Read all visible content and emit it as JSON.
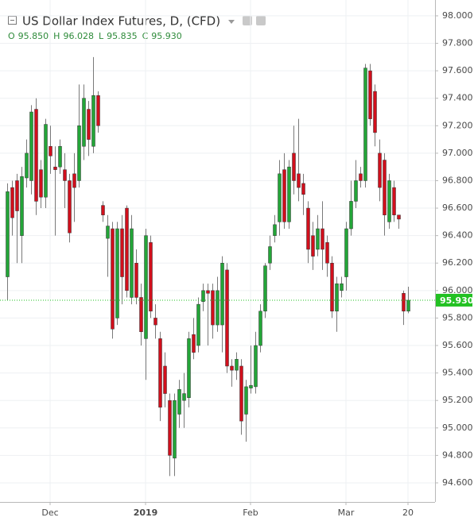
{
  "chart_data": {
    "type": "candlestick",
    "title": "US Dollar Index Futures, D, (CFD)",
    "ohlc_legend": [
      {
        "label": "O",
        "value": "95.850"
      },
      {
        "label": "H",
        "value": "96.028"
      },
      {
        "label": "L",
        "value": "95.835"
      },
      {
        "label": "C",
        "value": "95.930"
      }
    ],
    "categories": [
      null,
      null,
      null,
      null,
      null,
      null,
      null,
      null,
      null,
      "Dec",
      null,
      null,
      null,
      null,
      null,
      null,
      null,
      null,
      null,
      null,
      null,
      null,
      null,
      null,
      null,
      null,
      null,
      null,
      null,
      "2019",
      null,
      null,
      null,
      null,
      null,
      null,
      null,
      null,
      null,
      null,
      null,
      null,
      null,
      null,
      null,
      null,
      null,
      null,
      null,
      null,
      null,
      "Feb",
      null,
      null,
      null,
      null,
      null,
      null,
      null,
      null,
      null,
      null,
      null,
      null,
      null,
      null,
      null,
      null,
      null,
      null,
      null,
      "Mar",
      null,
      null,
      null,
      null,
      null,
      null,
      null,
      null,
      null,
      null,
      null,
      null,
      "20"
    ],
    "open": [
      96.1,
      96.75,
      96.8,
      96.4,
      96.82,
      96.8,
      97.32,
      96.88,
      96.68,
      97.05,
      96.9,
      96.9,
      96.88,
      96.8,
      96.85,
      96.8,
      97.05,
      97.32,
      97.05,
      97.42,
      96.62,
      96.38,
      96.45,
      95.8,
      96.45,
      96.6,
      95.95,
      96.2,
      95.95,
      95.65,
      96.35,
      95.8,
      95.65,
      95.45,
      95.2,
      94.78,
      95.1,
      95.2,
      95.22,
      95.68,
      95.6,
      95.92,
      96.0,
      96.0,
      95.75,
      95.75,
      96.15,
      95.45,
      95.42,
      95.45,
      95.1,
      95.29,
      95.3,
      95.6,
      95.85,
      96.2,
      96.4,
      96.5,
      96.88,
      96.5,
      97.0,
      96.85,
      96.78,
      96.6,
      96.4,
      96.3,
      96.45,
      96.35,
      96.2,
      95.85,
      96.0,
      96.1,
      96.45,
      96.65,
      96.85,
      96.8,
      97.6,
      97.45,
      97.0,
      96.95,
      96.5,
      96.75,
      96.55,
      95.98,
      95.85
    ],
    "high": [
      96.78,
      96.8,
      96.85,
      96.9,
      97.1,
      97.35,
      97.4,
      96.95,
      97.25,
      97.2,
      97.05,
      97.1,
      97.0,
      96.85,
      97.0,
      97.5,
      97.5,
      97.38,
      97.7,
      97.45,
      96.65,
      96.55,
      96.5,
      96.5,
      96.55,
      96.62,
      96.55,
      96.3,
      96.05,
      96.45,
      96.4,
      95.9,
      95.7,
      95.55,
      95.25,
      95.25,
      95.35,
      95.4,
      95.7,
      95.8,
      95.95,
      96.05,
      96.05,
      96.05,
      96.1,
      96.25,
      96.2,
      95.5,
      95.55,
      95.5,
      95.35,
      95.6,
      95.7,
      95.9,
      96.2,
      96.4,
      96.55,
      96.95,
      97.0,
      96.95,
      97.2,
      97.25,
      96.85,
      96.65,
      96.5,
      96.55,
      96.65,
      96.4,
      96.25,
      96.1,
      96.1,
      96.5,
      96.8,
      96.95,
      96.9,
      97.65,
      97.65,
      97.5,
      97.1,
      97.0,
      96.85,
      96.8,
      96.55,
      96.0,
      96.028
    ],
    "low": [
      95.93,
      96.4,
      96.2,
      96.2,
      96.75,
      96.7,
      96.55,
      96.6,
      96.6,
      96.85,
      96.4,
      96.85,
      96.6,
      96.35,
      96.5,
      96.75,
      96.95,
      96.98,
      97.0,
      97.15,
      96.5,
      96.1,
      95.65,
      95.75,
      95.9,
      95.95,
      95.9,
      95.9,
      95.6,
      95.35,
      95.8,
      95.65,
      95.05,
      95.15,
      94.65,
      94.65,
      95.0,
      95.0,
      95.15,
      95.5,
      95.55,
      95.85,
      95.6,
      95.65,
      95.7,
      95.55,
      95.4,
      95.3,
      95.35,
      94.95,
      94.9,
      95.25,
      95.25,
      95.55,
      95.8,
      96.15,
      96.35,
      96.4,
      96.45,
      96.45,
      96.7,
      96.65,
      96.55,
      96.2,
      96.15,
      96.25,
      96.15,
      96.1,
      95.8,
      95.7,
      95.95,
      96.0,
      96.4,
      96.6,
      96.75,
      96.75,
      97.2,
      97.05,
      96.65,
      96.4,
      96.45,
      96.5,
      96.45,
      95.75,
      95.835
    ],
    "close": [
      96.72,
      96.53,
      96.58,
      96.83,
      97.0,
      97.3,
      96.65,
      96.68,
      97.21,
      96.98,
      96.88,
      97.05,
      96.8,
      96.42,
      96.75,
      97.2,
      97.4,
      97.1,
      97.42,
      97.2,
      96.55,
      96.47,
      95.72,
      96.45,
      96.1,
      96.0,
      96.45,
      95.95,
      95.7,
      96.4,
      95.85,
      95.75,
      95.15,
      95.25,
      94.8,
      95.2,
      95.28,
      95.25,
      95.65,
      95.55,
      95.9,
      96.0,
      95.98,
      95.75,
      96.0,
      96.2,
      95.45,
      95.42,
      95.5,
      95.05,
      95.3,
      95.31,
      95.6,
      95.85,
      96.18,
      96.32,
      96.48,
      96.85,
      96.5,
      96.9,
      96.8,
      96.75,
      96.7,
      96.3,
      96.25,
      96.45,
      96.3,
      96.2,
      95.85,
      96.05,
      96.05,
      96.45,
      96.65,
      96.8,
      96.8,
      97.62,
      97.25,
      97.15,
      96.75,
      96.55,
      96.8,
      96.55,
      96.52,
      95.85,
      95.93
    ],
    "up_color": "#23a538",
    "down_color": "#d10f1c",
    "last_price": {
      "value": 95.93,
      "label": "95.930"
    },
    "last_price_color": "#22c122",
    "ylim": [
      94.461,
      98.069
    ],
    "yticks": [
      {
        "value": 94.6,
        "label": "94.600"
      },
      {
        "value": 94.8,
        "label": "94.800"
      },
      {
        "value": 95,
        "label": "95.000"
      },
      {
        "value": 95.2,
        "label": "95.200"
      },
      {
        "value": 95.4,
        "label": "95.400"
      },
      {
        "value": 95.6,
        "label": "95.600"
      },
      {
        "value": 95.8,
        "label": "95.800"
      },
      {
        "value": 96,
        "label": "96.000"
      },
      {
        "value": 96.2,
        "label": "96.200"
      },
      {
        "value": 96.4,
        "label": "96.400"
      },
      {
        "value": 96.6,
        "label": "96.600"
      },
      {
        "value": 96.8,
        "label": "96.800"
      },
      {
        "value": 97,
        "label": "97.000"
      },
      {
        "value": 97.2,
        "label": "97.200"
      },
      {
        "value": 97.4,
        "label": "97.400"
      },
      {
        "value": 97.6,
        "label": "97.600"
      },
      {
        "value": 97.8,
        "label": "97.800"
      },
      {
        "value": 98,
        "label": "98.000"
      }
    ],
    "grid": true
  }
}
